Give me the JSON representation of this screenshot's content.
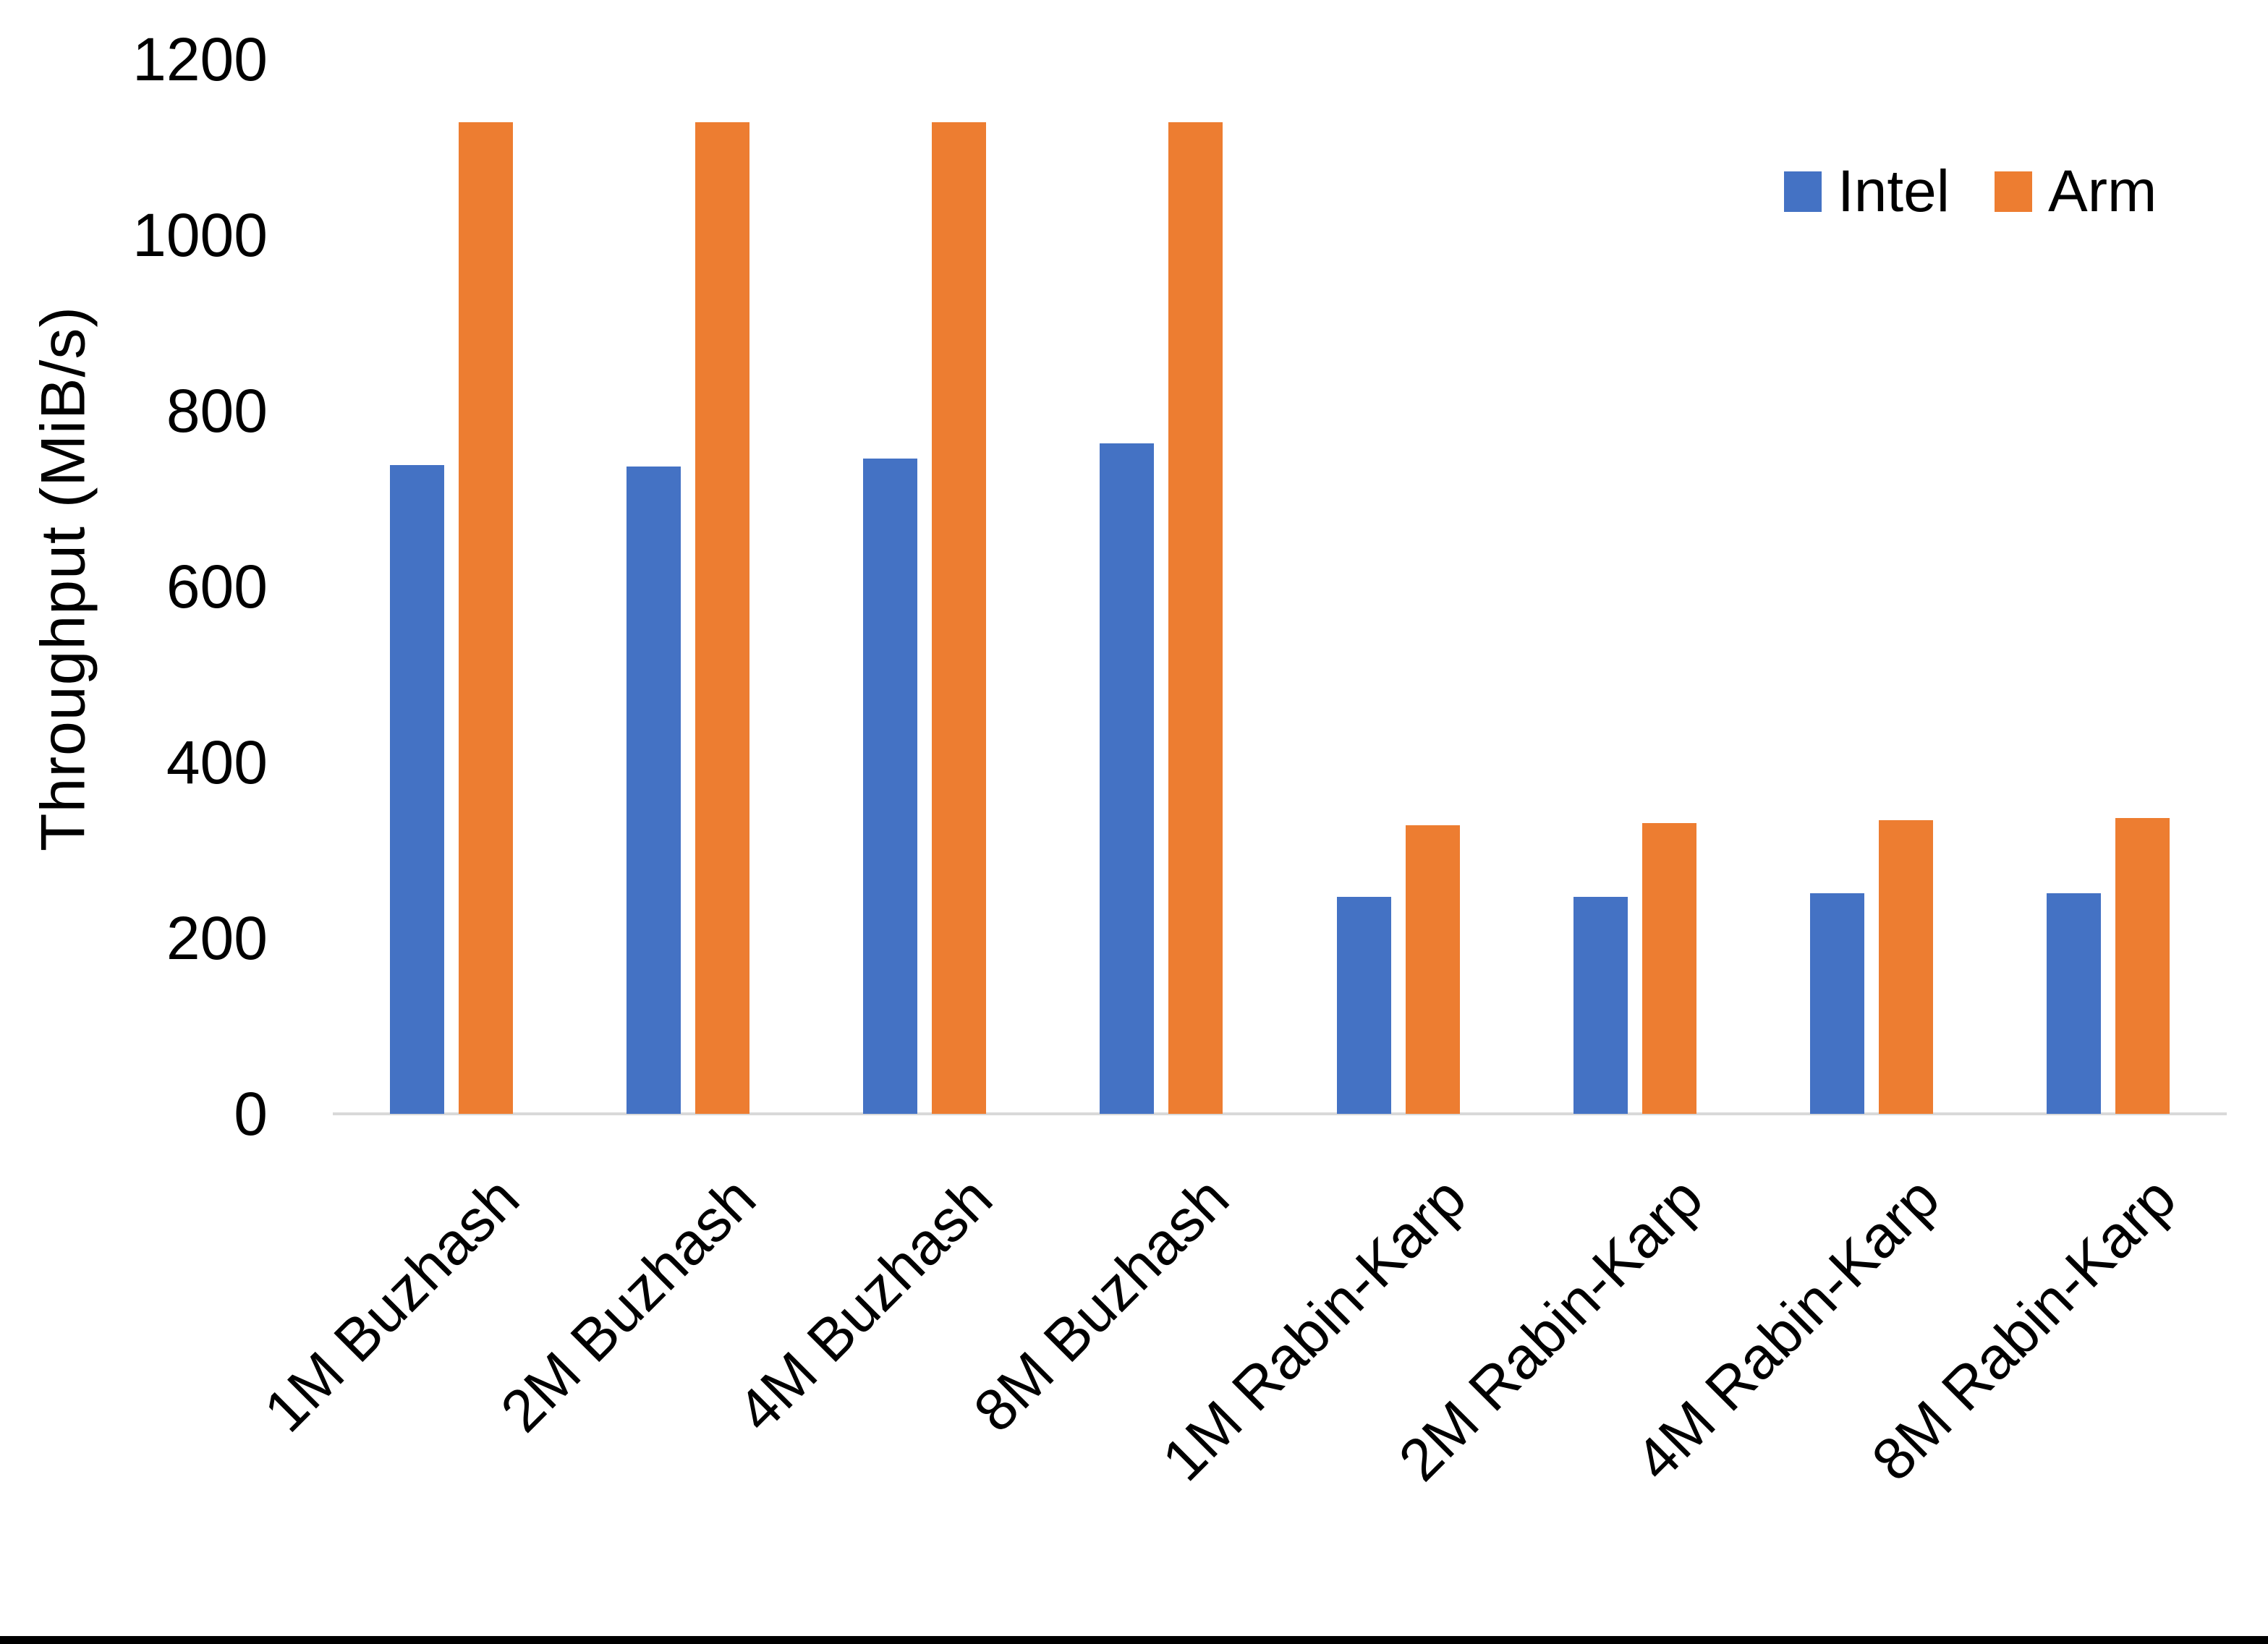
{
  "figure": {
    "background": "#FFFFFF",
    "bottom_border_color": "#000000",
    "text_color": "#000000"
  },
  "chart_data": {
    "type": "bar",
    "title": "",
    "xlabel": "",
    "ylabel": "Throughput (MiB/s)",
    "ylim": [
      0,
      1200
    ],
    "yticks": [
      0,
      200,
      400,
      600,
      800,
      1000,
      1200
    ],
    "grid": false,
    "axis_line_color": "#D9D9D9",
    "legend_position": "top-right",
    "categories": [
      "1M Buzhash",
      "2M Buzhash",
      "4M Buzhash",
      "8M Buzhash",
      "1M Rabin-Karp",
      "2M Rabin-Karp",
      "4M Rabin-Karp",
      "8M Rabin-Karp"
    ],
    "series": [
      {
        "name": "Intel",
        "color": "#4472C4",
        "values": [
          738,
          737,
          746,
          763,
          247,
          247,
          251,
          251
        ]
      },
      {
        "name": "Arm",
        "color": "#ED7D31",
        "values": [
          1128,
          1128,
          1128,
          1128,
          328,
          331,
          334,
          337
        ]
      }
    ]
  }
}
